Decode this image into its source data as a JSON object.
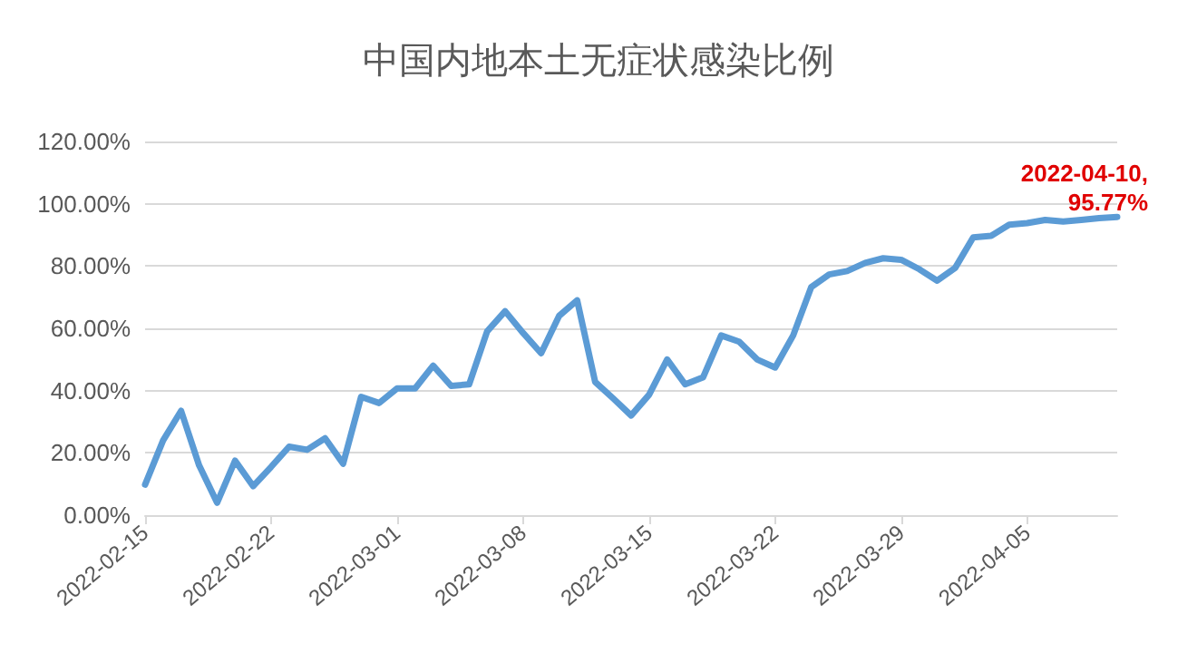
{
  "chart_data": {
    "type": "line",
    "title": "中国内地本土无症状感染比例",
    "categories": [
      "2022-02-15",
      null,
      null,
      null,
      null,
      null,
      null,
      "2022-02-22",
      null,
      null,
      null,
      null,
      null,
      null,
      "2022-03-01",
      null,
      null,
      null,
      null,
      null,
      null,
      "2022-03-08",
      null,
      null,
      null,
      null,
      null,
      null,
      "2022-03-15",
      null,
      null,
      null,
      null,
      null,
      null,
      "2022-03-22",
      null,
      null,
      null,
      null,
      null,
      null,
      "2022-03-29",
      null,
      null,
      null,
      null,
      null,
      null,
      "2022-04-05",
      null,
      null,
      null,
      null,
      null
    ],
    "series": [
      {
        "color": "#5b9bd5",
        "values": [
          9.8,
          24,
          33.5,
          16,
          4,
          17.5,
          9.3,
          15.5,
          22,
          21,
          24.7,
          16.5,
          38,
          36,
          40.7,
          40.7,
          48,
          41.5,
          42,
          59,
          65.5,
          58.5,
          52,
          64,
          69,
          42.8,
          37.5,
          32,
          38.7,
          50,
          42,
          44.3,
          57.7,
          55.7,
          50,
          47.4,
          57.7,
          73.2,
          77.3,
          78.4,
          81,
          82.5,
          82,
          79,
          75.3,
          79.4,
          89.2,
          89.7,
          93.3,
          93.8,
          94.8,
          94.3,
          94.8,
          95.4,
          95.77
        ]
      }
    ],
    "ylim": [
      0,
      120
    ],
    "yticks": [
      {
        "value": 0,
        "label": "0.00%"
      },
      {
        "value": 20,
        "label": "20.00%"
      },
      {
        "value": 40,
        "label": "40.00%"
      },
      {
        "value": 60,
        "label": "60.00%"
      },
      {
        "value": 80,
        "label": "80.00%"
      },
      {
        "value": 100,
        "label": "100.00%"
      },
      {
        "value": 120,
        "label": "120.00%"
      }
    ],
    "grid": "y",
    "marker": "none",
    "line_style": "solid",
    "annotations": [
      {
        "text": "2022-04-10, 95.77%",
        "y": 95.77
      }
    ]
  }
}
